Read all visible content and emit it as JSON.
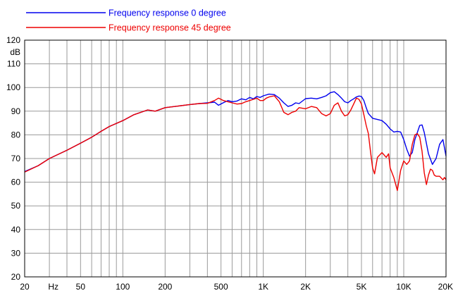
{
  "chart_data": {
    "type": "line",
    "x_scale": "log",
    "xlim": [
      20,
      20000
    ],
    "ylim": [
      20,
      120
    ],
    "y_unit": "dB",
    "x_unit": "Hz",
    "grid": true,
    "legend_position": "top-left",
    "x_major_ticks": [
      {
        "v": 20,
        "label": "20"
      },
      {
        "v": 50,
        "label": "50"
      },
      {
        "v": 100,
        "label": "100"
      },
      {
        "v": 200,
        "label": "200"
      },
      {
        "v": 500,
        "label": "500"
      },
      {
        "v": 1000,
        "label": "1K"
      },
      {
        "v": 2000,
        "label": "2K"
      },
      {
        "v": 5000,
        "label": "5K"
      },
      {
        "v": 10000,
        "label": "10K"
      },
      {
        "v": 20000,
        "label": "20K"
      }
    ],
    "y_ticks": [
      20,
      30,
      40,
      50,
      60,
      70,
      80,
      90,
      100,
      110,
      120
    ],
    "series": [
      {
        "name": "Frequency response 0 degree",
        "color": "#0000ee",
        "points": [
          [
            20,
            64.5
          ],
          [
            25,
            67
          ],
          [
            30,
            70
          ],
          [
            40,
            73.5
          ],
          [
            50,
            76.5
          ],
          [
            60,
            79
          ],
          [
            70,
            81.5
          ],
          [
            80,
            83.5
          ],
          [
            100,
            86
          ],
          [
            120,
            88.5
          ],
          [
            150,
            90.5
          ],
          [
            170,
            90
          ],
          [
            200,
            91.5
          ],
          [
            250,
            92.2
          ],
          [
            300,
            92.8
          ],
          [
            350,
            93.2
          ],
          [
            400,
            93.5
          ],
          [
            450,
            93.8
          ],
          [
            480,
            92.5
          ],
          [
            520,
            93.6
          ],
          [
            560,
            94.5
          ],
          [
            600,
            94
          ],
          [
            650,
            94.3
          ],
          [
            700,
            95.2
          ],
          [
            750,
            94.8
          ],
          [
            800,
            95.8
          ],
          [
            850,
            95.2
          ],
          [
            900,
            96.2
          ],
          [
            950,
            95.8
          ],
          [
            1000,
            96.5
          ],
          [
            1100,
            97.2
          ],
          [
            1200,
            97.0
          ],
          [
            1300,
            95.5
          ],
          [
            1400,
            93.5
          ],
          [
            1500,
            92
          ],
          [
            1600,
            92.5
          ],
          [
            1700,
            93.5
          ],
          [
            1800,
            93.2
          ],
          [
            2000,
            95.3
          ],
          [
            2200,
            95.5
          ],
          [
            2400,
            95.2
          ],
          [
            2600,
            95.8
          ],
          [
            2800,
            96.5
          ],
          [
            3000,
            97.8
          ],
          [
            3200,
            98.2
          ],
          [
            3400,
            97
          ],
          [
            3600,
            95.5
          ],
          [
            3800,
            94
          ],
          [
            4000,
            93.5
          ],
          [
            4200,
            94.5
          ],
          [
            4400,
            95.2
          ],
          [
            4600,
            96
          ],
          [
            4800,
            96.4
          ],
          [
            5000,
            96.2
          ],
          [
            5200,
            94.5
          ],
          [
            5400,
            91.5
          ],
          [
            5600,
            89
          ],
          [
            6000,
            87
          ],
          [
            6500,
            86.5
          ],
          [
            7000,
            86
          ],
          [
            7500,
            84.5
          ],
          [
            8000,
            82.5
          ],
          [
            8500,
            81.2
          ],
          [
            9000,
            81.5
          ],
          [
            9500,
            81.2
          ],
          [
            10000,
            78
          ],
          [
            10500,
            74
          ],
          [
            11000,
            71
          ],
          [
            11500,
            72.5
          ],
          [
            12000,
            78
          ],
          [
            12500,
            81
          ],
          [
            13000,
            84
          ],
          [
            13500,
            84.2
          ],
          [
            14000,
            81
          ],
          [
            15000,
            72
          ],
          [
            16000,
            67.5
          ],
          [
            17000,
            70
          ],
          [
            18000,
            76
          ],
          [
            19000,
            78
          ],
          [
            20000,
            71
          ]
        ]
      },
      {
        "name": "Frequency response 45 degree",
        "color": "#ee0000",
        "points": [
          [
            20,
            64.3
          ],
          [
            25,
            67
          ],
          [
            30,
            70
          ],
          [
            40,
            73.5
          ],
          [
            50,
            76.5
          ],
          [
            60,
            79
          ],
          [
            70,
            81.5
          ],
          [
            80,
            83.5
          ],
          [
            100,
            86
          ],
          [
            120,
            88.5
          ],
          [
            150,
            90.5
          ],
          [
            170,
            90
          ],
          [
            200,
            91.5
          ],
          [
            250,
            92.2
          ],
          [
            300,
            92.8
          ],
          [
            350,
            93.2
          ],
          [
            400,
            93.3
          ],
          [
            450,
            94.5
          ],
          [
            480,
            95.5
          ],
          [
            520,
            94.5
          ],
          [
            560,
            94
          ],
          [
            600,
            93.5
          ],
          [
            650,
            93
          ],
          [
            700,
            93.2
          ],
          [
            750,
            94
          ],
          [
            800,
            94.5
          ],
          [
            850,
            95
          ],
          [
            900,
            95.5
          ],
          [
            950,
            94.5
          ],
          [
            1000,
            94.5
          ],
          [
            1050,
            95.5
          ],
          [
            1100,
            96
          ],
          [
            1200,
            96.5
          ],
          [
            1300,
            94
          ],
          [
            1400,
            89.5
          ],
          [
            1500,
            88.5
          ],
          [
            1600,
            89.5
          ],
          [
            1700,
            90
          ],
          [
            1800,
            91.5
          ],
          [
            2000,
            91
          ],
          [
            2200,
            92
          ],
          [
            2400,
            91.5
          ],
          [
            2600,
            89
          ],
          [
            2800,
            88
          ],
          [
            3000,
            89
          ],
          [
            3200,
            92.5
          ],
          [
            3400,
            93.5
          ],
          [
            3600,
            90
          ],
          [
            3800,
            88
          ],
          [
            4000,
            88.5
          ],
          [
            4200,
            90.5
          ],
          [
            4400,
            93
          ],
          [
            4600,
            95.5
          ],
          [
            4800,
            95
          ],
          [
            5000,
            93
          ],
          [
            5200,
            88.5
          ],
          [
            5400,
            84
          ],
          [
            5600,
            80.5
          ],
          [
            5800,
            73
          ],
          [
            6000,
            66
          ],
          [
            6200,
            63.5
          ],
          [
            6500,
            70.5
          ],
          [
            7000,
            72.5
          ],
          [
            7500,
            70.5
          ],
          [
            7800,
            72
          ],
          [
            8000,
            66
          ],
          [
            8500,
            62
          ],
          [
            9000,
            56.5
          ],
          [
            9500,
            65
          ],
          [
            10000,
            69
          ],
          [
            10500,
            67.5
          ],
          [
            11000,
            69
          ],
          [
            11500,
            76
          ],
          [
            12000,
            80
          ],
          [
            12500,
            80.5
          ],
          [
            13000,
            79
          ],
          [
            13500,
            73
          ],
          [
            14000,
            64
          ],
          [
            14500,
            59
          ],
          [
            15000,
            63
          ],
          [
            15500,
            65.5
          ],
          [
            16000,
            65
          ],
          [
            16500,
            63
          ],
          [
            17000,
            62.5
          ],
          [
            18000,
            62.5
          ],
          [
            19000,
            61
          ],
          [
            19500,
            62
          ],
          [
            20000,
            61
          ]
        ]
      }
    ]
  }
}
